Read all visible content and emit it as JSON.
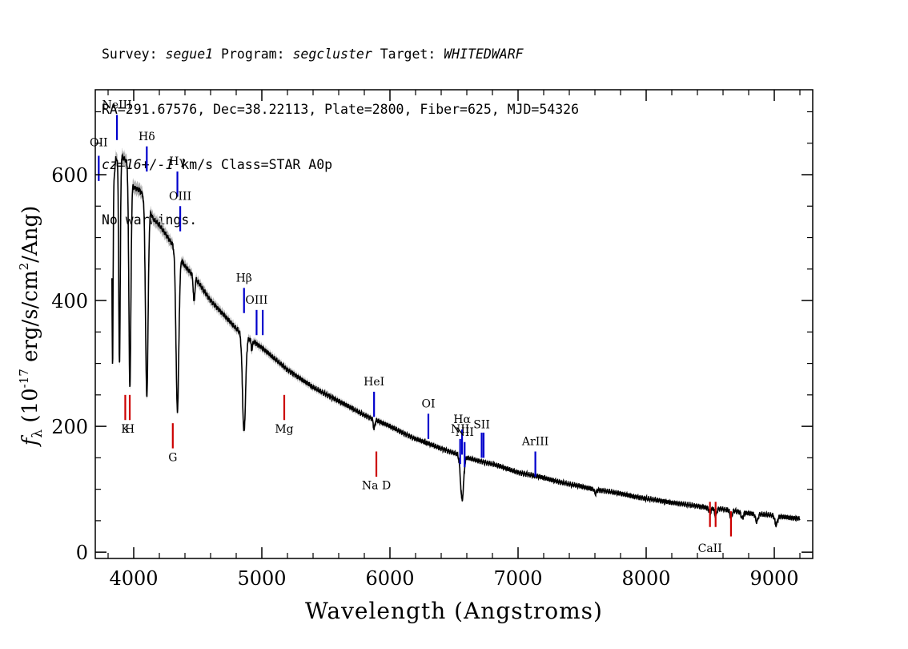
{
  "header": {
    "survey_label": "Survey:",
    "survey": "segue1",
    "program_label": "Program:",
    "program": "segcluster",
    "target_label": "Target:",
    "target": "WHITEDWARF",
    "line2": "RA=291.67576, Dec=38.22113, Plate=2800, Fiber=625, MJD=54326",
    "cz": "cz=16+/-1",
    "cz_rest": " km/s Class=STAR A0p",
    "line4": "No warnings."
  },
  "chart_data": {
    "type": "line",
    "title": "",
    "xlabel": "Wavelength (Angstroms)",
    "ylabel": "f",
    "ylabel_sub": "λ",
    "ylabel_units": "(10",
    "ylabel_exp": "-17",
    "ylabel_units2": "erg/s/cm",
    "ylabel_exp2": "2",
    "ylabel_units3": "/Ang)",
    "xlim": [
      3700,
      9300
    ],
    "ylim": [
      -10,
      735
    ],
    "xticks": [
      4000,
      5000,
      6000,
      7000,
      8000,
      9000
    ],
    "xtick_labels": [
      "4000",
      "5000",
      "6000",
      "7000",
      "8000",
      "9000"
    ],
    "yticks": [
      0,
      200,
      400,
      600
    ],
    "ytick_labels": [
      "0",
      "200",
      "400",
      "600"
    ],
    "grid": false,
    "continuum": {
      "x": [
        3830,
        3860,
        3900,
        3950,
        4000,
        4050,
        4100,
        4150,
        4200,
        4300,
        4400,
        4500,
        4600,
        4700,
        4800,
        4900,
        5000,
        5200,
        5400,
        5600,
        5800,
        6000,
        6200,
        6400,
        6600,
        6800,
        7000,
        7200,
        7400,
        7600,
        7800,
        8000,
        8200,
        8400,
        8600,
        8800,
        9000,
        9200
      ],
      "y": [
        560,
        625,
        630,
        620,
        580,
        575,
        560,
        530,
        520,
        490,
        455,
        430,
        400,
        378,
        355,
        340,
        325,
        290,
        262,
        240,
        218,
        200,
        180,
        165,
        150,
        140,
        127,
        118,
        108,
        100,
        93,
        85,
        79,
        73,
        68,
        62,
        58,
        53
      ]
    },
    "absorption_lines": [
      {
        "x": 3835,
        "depth": 270,
        "width": 4
      },
      {
        "x": 3889,
        "depth": 330,
        "width": 6
      },
      {
        "x": 3970,
        "depth": 340,
        "width": 8
      },
      {
        "x": 4102,
        "depth": 310,
        "width": 10
      },
      {
        "x": 4341,
        "depth": 250,
        "width": 11
      },
      {
        "x": 4471,
        "depth": 40,
        "width": 6
      },
      {
        "x": 4861,
        "depth": 155,
        "width": 12
      },
      {
        "x": 4922,
        "depth": 15,
        "width": 5
      },
      {
        "x": 5876,
        "depth": 15,
        "width": 6
      },
      {
        "x": 6563,
        "depth": 70,
        "width": 12
      },
      {
        "x": 7605,
        "depth": 6,
        "width": 8
      },
      {
        "x": 8498,
        "depth": 8,
        "width": 8
      },
      {
        "x": 8542,
        "depth": 12,
        "width": 8
      },
      {
        "x": 8662,
        "depth": 12,
        "width": 8
      },
      {
        "x": 8750,
        "depth": 10,
        "width": 8
      },
      {
        "x": 8863,
        "depth": 12,
        "width": 10
      },
      {
        "x": 9015,
        "depth": 14,
        "width": 10
      }
    ],
    "emission_markers": [
      {
        "label": "OII",
        "x": 3727,
        "y0": 590,
        "y1": 630,
        "color": "#0000cc",
        "label_y": 645
      },
      {
        "label": "NeIII",
        "x": 3869,
        "y0": 655,
        "y1": 695,
        "color": "#0000cc",
        "label_y": 705
      },
      {
        "label": "Hδ",
        "x": 4102,
        "y0": 605,
        "y1": 645,
        "color": "#0000cc",
        "label_y": 655
      },
      {
        "label": "Hγ",
        "x": 4341,
        "y0": 565,
        "y1": 605,
        "color": "#0000cc",
        "label_y": 615
      },
      {
        "label": "OIII",
        "x": 4363,
        "y0": 510,
        "y1": 550,
        "color": "#0000cc",
        "label_y": 560
      },
      {
        "label": "Hβ",
        "x": 4861,
        "y0": 380,
        "y1": 420,
        "color": "#0000cc",
        "label_y": 430
      },
      {
        "label": "OIII",
        "x": 4959,
        "y0": 345,
        "y1": 385,
        "color": "#0000cc",
        "label_y": 395
      },
      {
        "label": "",
        "x": 5007,
        "y0": 345,
        "y1": 385,
        "color": "#0000cc",
        "label_y": 395
      },
      {
        "label": "HeI",
        "x": 5876,
        "y0": 215,
        "y1": 255,
        "color": "#0000cc",
        "label_y": 265
      },
      {
        "label": "OI",
        "x": 6300,
        "y0": 180,
        "y1": 220,
        "color": "#0000cc",
        "label_y": 230
      },
      {
        "label": "NII",
        "x": 6548,
        "y0": 140,
        "y1": 180,
        "color": "#0000cc",
        "label_y": 190
      },
      {
        "label": "Hα",
        "x": 6563,
        "y0": 155,
        "y1": 195,
        "color": "#0000cc",
        "label_y": 205
      },
      {
        "label": "NII",
        "x": 6583,
        "y0": 135,
        "y1": 175,
        "color": "#0000cc",
        "label_y": 185
      },
      {
        "label": "SII",
        "x": 6716,
        "y0": 150,
        "y1": 190,
        "color": "#0000cc",
        "label_y": 197
      },
      {
        "label": "",
        "x": 6731,
        "y0": 150,
        "y1": 190,
        "color": "#0000cc",
        "label_y": 197
      },
      {
        "label": "ArIII",
        "x": 7135,
        "y0": 120,
        "y1": 160,
        "color": "#0000cc",
        "label_y": 170
      }
    ],
    "absorption_markers": [
      {
        "label": "K",
        "x": 3934,
        "y0": 210,
        "y1": 250,
        "color": "#cc0000",
        "label_y": 190
      },
      {
        "label": "H",
        "x": 3969,
        "y0": 210,
        "y1": 250,
        "color": "#cc0000",
        "label_y": 190
      },
      {
        "label": "G",
        "x": 4305,
        "y0": 165,
        "y1": 205,
        "color": "#cc0000",
        "label_y": 145
      },
      {
        "label": "Mg",
        "x": 5175,
        "y0": 210,
        "y1": 250,
        "color": "#cc0000",
        "label_y": 190
      },
      {
        "label": "Na D",
        "x": 5894,
        "y0": 120,
        "y1": 160,
        "color": "#cc0000",
        "label_y": 100
      },
      {
        "label": "CaII",
        "x": 8498,
        "y0": 40,
        "y1": 80,
        "color": "#cc0000",
        "label_y": 0
      },
      {
        "label": "",
        "x": 8542,
        "y0": 40,
        "y1": 80,
        "color": "#cc0000",
        "label_y": 0
      },
      {
        "label": "",
        "x": 8662,
        "y0": 25,
        "y1": 65,
        "color": "#cc0000",
        "label_y": 0
      }
    ],
    "line_color": "#000000",
    "error_band_color": "#b0b0b0"
  }
}
